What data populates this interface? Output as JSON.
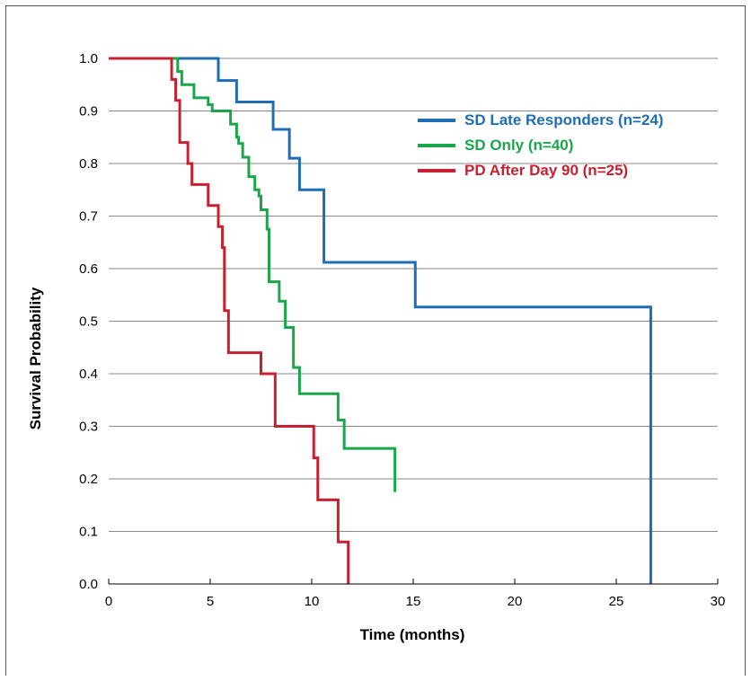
{
  "chart_data": {
    "type": "line",
    "step": true,
    "title": "",
    "xlabel": "Time (months)",
    "ylabel": "Survival Probability",
    "xlim": [
      0,
      30
    ],
    "ylim": [
      0,
      1.0
    ],
    "xticks": [
      "0",
      "5",
      "10",
      "15",
      "20",
      "25",
      "30"
    ],
    "xtick_values": [
      0,
      5,
      10,
      15,
      20,
      25,
      30
    ],
    "yticks": [
      "0.0",
      "0.1",
      "0.2",
      "0.3",
      "0.4",
      "0.5",
      "0.6",
      "0.7",
      "0.8",
      "0.9",
      "1.0"
    ],
    "ytick_values": [
      0,
      0.1,
      0.2,
      0.3,
      0.4,
      0.5,
      0.6,
      0.7,
      0.8,
      0.9,
      1.0
    ],
    "grid": "horizontal",
    "legend_position": "top-right",
    "series": [
      {
        "name": "SD Late Responders (n=24)",
        "color": "#1f6db3",
        "x": [
          0,
          5.4,
          6.3,
          8.1,
          8.9,
          9.4,
          10.6,
          15.1,
          26.7
        ],
        "y": [
          1.0,
          0.958,
          0.917,
          0.865,
          0.81,
          0.75,
          0.612,
          0.527,
          0.0
        ]
      },
      {
        "name": "SD Only (n=40)",
        "color": "#1aa64a",
        "x": [
          0,
          3.4,
          3.6,
          4.2,
          4.9,
          5.1,
          6.0,
          6.3,
          6.4,
          6.6,
          6.9,
          7.2,
          7.4,
          7.5,
          7.8,
          7.9,
          8.4,
          8.7,
          9.1,
          9.4,
          11.3,
          11.6,
          14.1
        ],
        "y": [
          1.0,
          0.975,
          0.95,
          0.925,
          0.912,
          0.9,
          0.875,
          0.85,
          0.838,
          0.812,
          0.775,
          0.75,
          0.738,
          0.712,
          0.675,
          0.575,
          0.538,
          0.488,
          0.412,
          0.362,
          0.312,
          0.258,
          0.175
        ]
      },
      {
        "name": "PD After Day 90 (n=25)",
        "color": "#c8202f",
        "x": [
          0,
          3.1,
          3.3,
          3.5,
          3.9,
          4.1,
          4.9,
          5.4,
          5.6,
          5.7,
          5.9,
          7.5,
          8.2,
          10.1,
          10.3,
          11.3,
          11.5,
          11.8
        ],
        "y": [
          1.0,
          0.96,
          0.92,
          0.84,
          0.8,
          0.76,
          0.72,
          0.68,
          0.64,
          0.52,
          0.44,
          0.4,
          0.3,
          0.24,
          0.16,
          0.08,
          0.08,
          0.0
        ]
      }
    ]
  }
}
